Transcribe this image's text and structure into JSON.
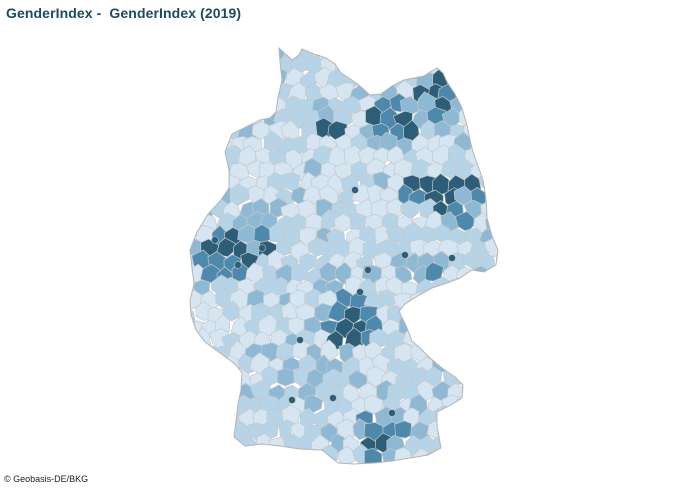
{
  "header": {
    "title": "GenderIndex -  GenderIndex (2019)"
  },
  "map": {
    "region": "Germany",
    "boundaries": "districts",
    "palette": {
      "very_light": "#d5e6f2",
      "light": "#b6d4e7",
      "medium": "#8db9d4",
      "dark": "#4d89ac",
      "darkest": "#2c5e78",
      "border": "#c8c8c8",
      "outer_border": "#b4b4b4"
    }
  },
  "footer": {
    "attribution": "© Geobasis-DE/BKG"
  }
}
